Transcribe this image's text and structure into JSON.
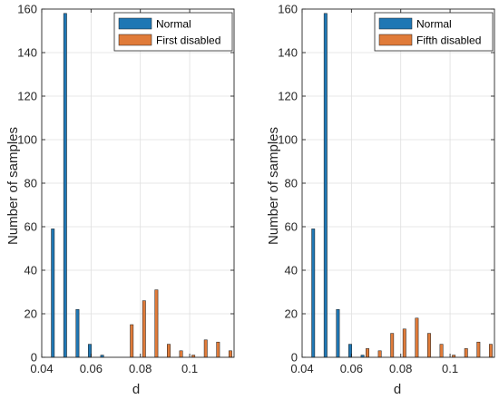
{
  "figure": {
    "ylabel": "Number of samples",
    "xlabel": "d"
  },
  "colors": {
    "normal": "#1f77b4",
    "disabled": "#e07b39",
    "grid": "#dfdfdf",
    "axis": "#262626"
  },
  "chart_data": [
    {
      "type": "bar",
      "title": "",
      "xlabel": "d",
      "ylabel": "Number of samples",
      "xlim": [
        0.04,
        0.118
      ],
      "ylim": [
        0,
        160
      ],
      "xticks": [
        0.04,
        0.06,
        0.08,
        0.1
      ],
      "xtick_labels": [
        "0.04",
        "0.06",
        "0.08",
        "0.1"
      ],
      "yticks": [
        0,
        20,
        40,
        60,
        80,
        100,
        120,
        140,
        160
      ],
      "ytick_labels": [
        "0",
        "20",
        "40",
        "60",
        "80",
        "100",
        "120",
        "140",
        "160"
      ],
      "grid": true,
      "legend_position": "top-right",
      "series": [
        {
          "name": "Normal",
          "color_key": "normal",
          "x": [
            0.0445,
            0.0495,
            0.0545,
            0.0595,
            0.0645
          ],
          "values": [
            59,
            158,
            22,
            6,
            1
          ]
        },
        {
          "name": "First disabled",
          "color_key": "disabled",
          "x": [
            0.0765,
            0.0815,
            0.0865,
            0.0915,
            0.0965,
            0.1015,
            0.1065,
            0.1115,
            0.1165
          ],
          "values": [
            15,
            26,
            31,
            6,
            3,
            1,
            8,
            7,
            3
          ]
        }
      ]
    },
    {
      "type": "bar",
      "title": "",
      "xlabel": "d",
      "ylabel": "Number of samples",
      "xlim": [
        0.04,
        0.118
      ],
      "ylim": [
        0,
        160
      ],
      "xticks": [
        0.04,
        0.06,
        0.08,
        0.1
      ],
      "xtick_labels": [
        "0.04",
        "0.06",
        "0.08",
        "0.1"
      ],
      "yticks": [
        0,
        20,
        40,
        60,
        80,
        100,
        120,
        140,
        160
      ],
      "ytick_labels": [
        "0",
        "20",
        "40",
        "60",
        "80",
        "100",
        "120",
        "140",
        "160"
      ],
      "grid": true,
      "legend_position": "top-right",
      "series": [
        {
          "name": "Normal",
          "color_key": "normal",
          "x": [
            0.0445,
            0.0495,
            0.0545,
            0.0595,
            0.0645
          ],
          "values": [
            59,
            158,
            22,
            6,
            1
          ]
        },
        {
          "name": "Fifth disabled",
          "color_key": "disabled",
          "x": [
            0.0665,
            0.0715,
            0.0765,
            0.0815,
            0.0865,
            0.0915,
            0.0965,
            0.1015,
            0.1065,
            0.1115,
            0.1165
          ],
          "values": [
            4,
            3,
            11,
            13,
            18,
            11,
            6,
            1,
            4,
            7,
            6
          ]
        }
      ]
    }
  ]
}
